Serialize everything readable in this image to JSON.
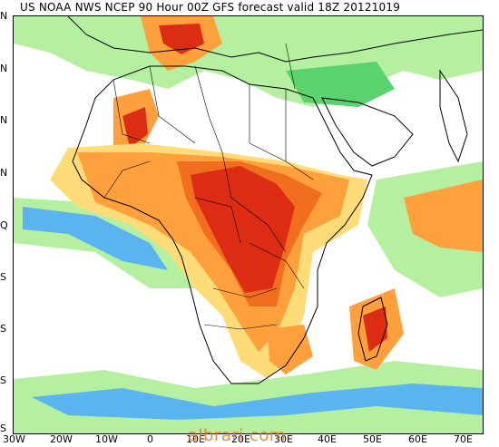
{
  "title": "US NOAA NWS NCEP 90 Hour 00Z GFS forecast valid 18Z 20121019",
  "watermark": "albrari.com",
  "lat_labels": [
    "N",
    "N",
    "N",
    "N",
    "Q",
    "S",
    "S",
    "S",
    "S"
  ],
  "lon_labels": [
    "30W",
    "20W",
    "10W",
    "0",
    "10E",
    "20E",
    "30E",
    "40E",
    "50E",
    "60E",
    "70E"
  ],
  "colors": {
    "lightgreen": "#b4f0a0",
    "green": "#5ad26e",
    "lightblue": "#5ab4f0",
    "blue": "#2878dc",
    "yellow": "#ffdc78",
    "orange": "#ffa03c",
    "darkorange": "#f06e1e",
    "red": "#dc2d14",
    "coast": "#000000"
  }
}
